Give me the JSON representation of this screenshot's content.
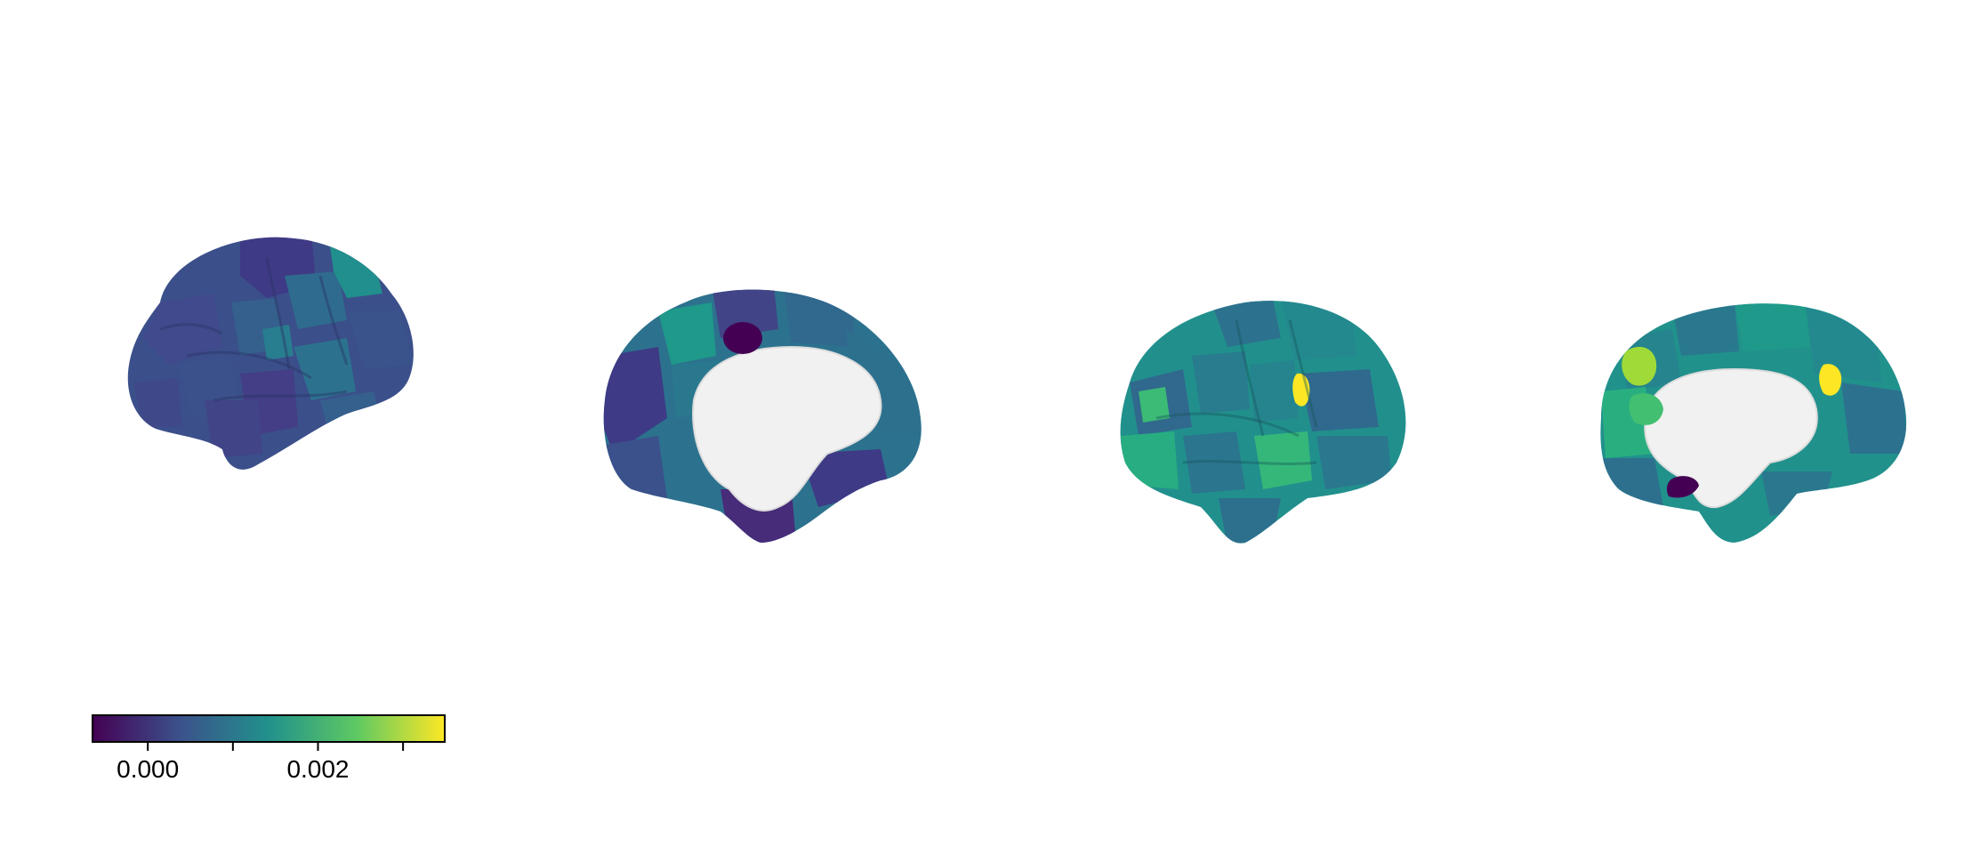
{
  "figure": {
    "views": [
      {
        "hemisphere": "left",
        "view": "lateral"
      },
      {
        "hemisphere": "left",
        "view": "medial"
      },
      {
        "hemisphere": "right",
        "view": "lateral"
      },
      {
        "hemisphere": "right",
        "view": "medial"
      }
    ]
  },
  "colorbar": {
    "colormap": "viridis",
    "stops": [
      "#440154",
      "#3b528b",
      "#21918c",
      "#5ec962",
      "#fde725"
    ],
    "range": [
      -0.00065,
      0.00349
    ],
    "ticks": [
      0.0,
      0.001,
      0.002,
      0.003
    ],
    "tick_labels": [
      "0.000",
      "0.002"
    ]
  }
}
